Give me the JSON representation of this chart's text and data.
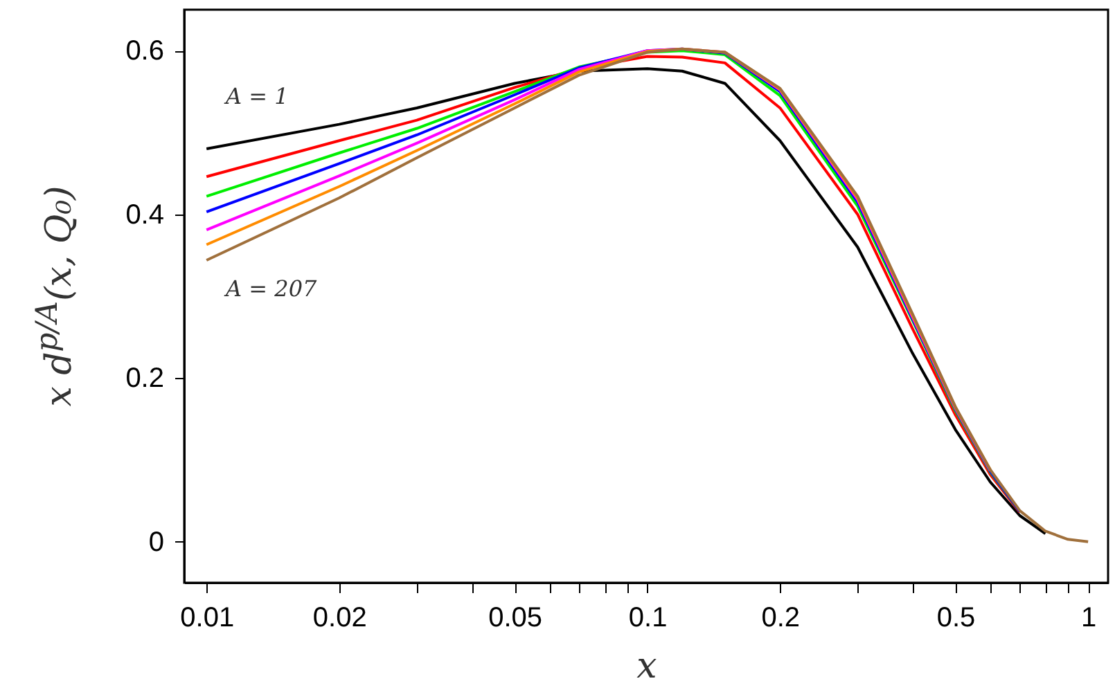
{
  "chart_data": {
    "type": "line",
    "xlabel": "x",
    "ylabel": "x d$^{p/A}$(x, Q₀)",
    "log": "x",
    "xlim": [
      0.0089,
      1.11
    ],
    "ylim": [
      -0.05,
      0.65
    ],
    "xticks": [
      0.01,
      0.02,
      {
        "value": 0.03,
        "label": null
      },
      {
        "value": 0.04,
        "label": null
      },
      0.05,
      {
        "value": 0.06,
        "label": null
      },
      {
        "value": 0.07,
        "label": null
      },
      {
        "value": 0.08,
        "label": null
      },
      {
        "value": 0.09,
        "label": null
      },
      0.1,
      0.2,
      {
        "value": 0.3,
        "label": null
      },
      {
        "value": 0.4,
        "label": null
      },
      0.5,
      {
        "value": 0.6,
        "label": null
      },
      {
        "value": 0.7,
        "label": null
      },
      {
        "value": 0.8,
        "label": null
      },
      {
        "value": 0.9,
        "label": null
      },
      1
    ],
    "yticks": [
      0,
      0.2,
      0.4,
      0.6
    ],
    "x": [
      0.01,
      0.02,
      0.03,
      0.05,
      0.07,
      0.1,
      0.12,
      0.15,
      0.2,
      0.3,
      0.4,
      0.5,
      0.6,
      0.7,
      0.8,
      0.9,
      1
    ],
    "series": [
      {
        "color": "#000000",
        "values": [
          0.48,
          0.51,
          0.53,
          0.56,
          0.575,
          0.578,
          0.575,
          0.56,
          0.49,
          0.36,
          0.23,
          0.137,
          0.073,
          0.032,
          0.01,
          null,
          null
        ]
      },
      {
        "color": "#ff0000",
        "values": [
          0.446,
          0.49,
          0.515,
          0.555,
          0.578,
          0.593,
          0.592,
          0.585,
          0.53,
          0.4,
          0.26,
          0.155,
          0.082,
          0.036,
          null,
          null,
          null
        ]
      },
      {
        "color": "#00ee00",
        "values": [
          0.422,
          0.475,
          0.505,
          0.55,
          0.58,
          0.598,
          0.6,
          0.595,
          0.545,
          0.41,
          0.27,
          0.16,
          0.085,
          0.037,
          null,
          null,
          null
        ]
      },
      {
        "color": "#0000ff",
        "values": [
          0.403,
          0.462,
          0.497,
          0.546,
          0.579,
          0.6,
          0.602,
          0.597,
          0.55,
          0.415,
          0.272,
          0.162,
          0.086,
          0.037,
          null,
          null,
          null
        ]
      },
      {
        "color": "#ff00ff",
        "values": [
          0.381,
          0.447,
          0.487,
          0.54,
          0.577,
          0.6,
          0.602,
          0.598,
          0.552,
          0.418,
          0.274,
          0.163,
          0.087,
          null,
          null,
          null,
          null
        ]
      },
      {
        "color": "#ff8c00",
        "values": [
          0.363,
          0.434,
          0.478,
          0.535,
          0.574,
          0.599,
          0.602,
          0.598,
          0.553,
          0.42,
          0.276,
          0.164,
          0.088,
          null,
          null,
          null,
          null
        ]
      },
      {
        "color": "#a0703c",
        "values": [
          0.344,
          0.42,
          0.469,
          0.53,
          0.57,
          0.598,
          0.602,
          0.598,
          0.554,
          0.422,
          0.278,
          0.165,
          0.088,
          0.038,
          0.013,
          0.003,
          0
        ]
      }
    ],
    "annotations": [
      "A = 1",
      "A = 207"
    ],
    "line_style": "solid",
    "marker": "none",
    "grid": false
  }
}
